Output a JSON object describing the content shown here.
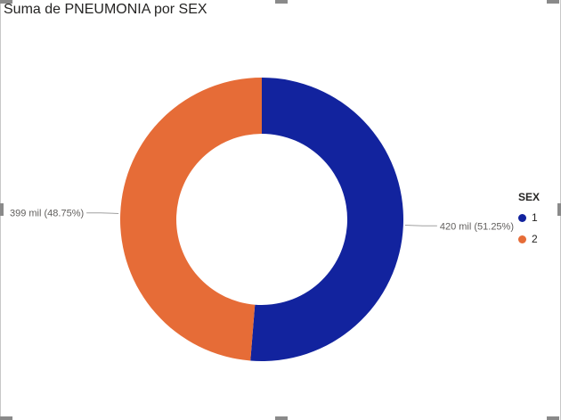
{
  "chart_data": {
    "type": "pie",
    "style": "donut",
    "title": "Suma de PNEUMONIA por SEX",
    "legend_title": "SEX",
    "legend_position": "right",
    "slices": [
      {
        "category": "1",
        "value": 420000,
        "percent": 51.25,
        "label": "420 mil (51.25%)",
        "color": "#12239e"
      },
      {
        "category": "2",
        "value": 399000,
        "percent": 48.75,
        "label": "399 mil (48.75%)",
        "color": "#e66c37"
      }
    ]
  }
}
